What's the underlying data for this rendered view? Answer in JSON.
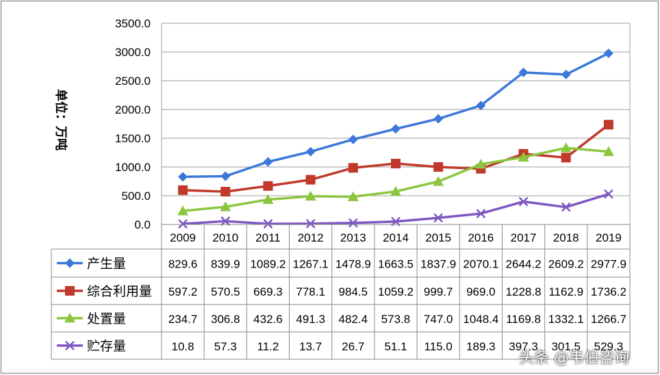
{
  "chart_data": {
    "type": "line",
    "title": "",
    "ylabel": "单位：万吨",
    "xlabel": "",
    "ylim": [
      0,
      3500
    ],
    "yticks": [
      "0.0",
      "500.0",
      "1000.0",
      "1500.0",
      "2000.0",
      "2500.0",
      "3000.0",
      "3500.0"
    ],
    "grid": true,
    "legend": "data-table-left",
    "categories": [
      "2009",
      "2010",
      "2011",
      "2012",
      "2013",
      "2014",
      "2015",
      "2016",
      "2017",
      "2018",
      "2019"
    ],
    "series": [
      {
        "name": "产生量",
        "color": "#3B78D8",
        "marker": "diamond",
        "values": [
          829.6,
          839.9,
          1089.2,
          1267.1,
          1478.9,
          1663.5,
          1837.9,
          2070.1,
          2644.2,
          2609.2,
          2977.9
        ],
        "labels": [
          "829.6",
          "839.9",
          "1089.2",
          "1267.1",
          "1478.9",
          "1663.5",
          "1837.9",
          "2070.1",
          "2644.2",
          "2609.2",
          "2977.9"
        ]
      },
      {
        "name": "综合利用量",
        "color": "#C0392B",
        "marker": "square",
        "values": [
          597.2,
          570.5,
          669.3,
          778.1,
          984.5,
          1059.2,
          999.7,
          969.0,
          1228.8,
          1162.9,
          1736.2
        ],
        "labels": [
          "597.2",
          "570.5",
          "669.3",
          "778.1",
          "984.5",
          "1059.2",
          "999.7",
          "969.0",
          "1228.8",
          "1162.9",
          "1736.2"
        ]
      },
      {
        "name": "处置量",
        "color": "#8CC63F",
        "marker": "triangle",
        "values": [
          234.7,
          306.8,
          432.6,
          491.3,
          482.4,
          573.8,
          747.0,
          1048.4,
          1169.8,
          1332.1,
          1266.7
        ],
        "labels": [
          "234.7",
          "306.8",
          "432.6",
          "491.3",
          "482.4",
          "573.8",
          "747.0",
          "1048.4",
          "1169.8",
          "1332.1",
          "1266.7"
        ]
      },
      {
        "name": "贮存量",
        "color": "#7E57C2",
        "marker": "x",
        "values": [
          10.8,
          57.3,
          11.2,
          13.7,
          26.7,
          51.1,
          115.0,
          189.3,
          397.3,
          301.5,
          529.3
        ],
        "labels": [
          "10.8",
          "57.3",
          "11.2",
          "13.7",
          "26.7",
          "51.1",
          "115.0",
          "189.3",
          "397.3",
          "301.5",
          "529.3"
        ]
      }
    ]
  },
  "watermark": "头条 @韦伯咨询"
}
